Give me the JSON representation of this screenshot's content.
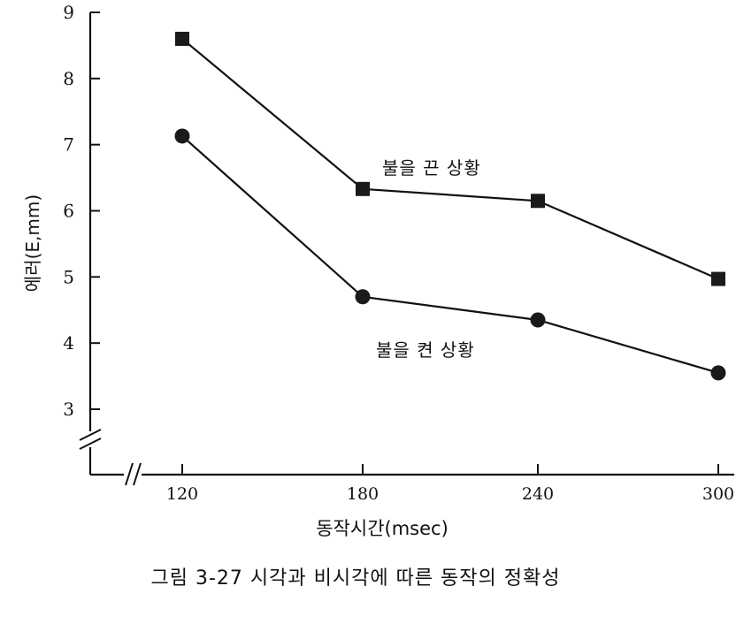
{
  "chart_data": {
    "type": "line",
    "title": "",
    "xlabel": "동작시간(msec)",
    "ylabel": "에러(E,mm)",
    "categories": [
      "120",
      "180",
      "240",
      "300"
    ],
    "x_tick_labels": [
      "120",
      "180",
      "240",
      "300"
    ],
    "y_tick_labels": [
      "3",
      "4",
      "5",
      "6",
      "7",
      "8",
      "9"
    ],
    "ylim": [
      3,
      9
    ],
    "axis_breaks": [
      "x",
      "y"
    ],
    "grid": false,
    "series": [
      {
        "name": "불을 끈 상황",
        "marker": "square",
        "values": [
          8.6,
          6.33,
          6.15,
          4.97
        ]
      },
      {
        "name": "불을 켠 상황",
        "marker": "circle",
        "values": [
          7.13,
          4.7,
          4.35,
          3.55
        ]
      }
    ]
  },
  "caption": "그림 3-27 시각과 비시각에 따른 동작의 정확성"
}
